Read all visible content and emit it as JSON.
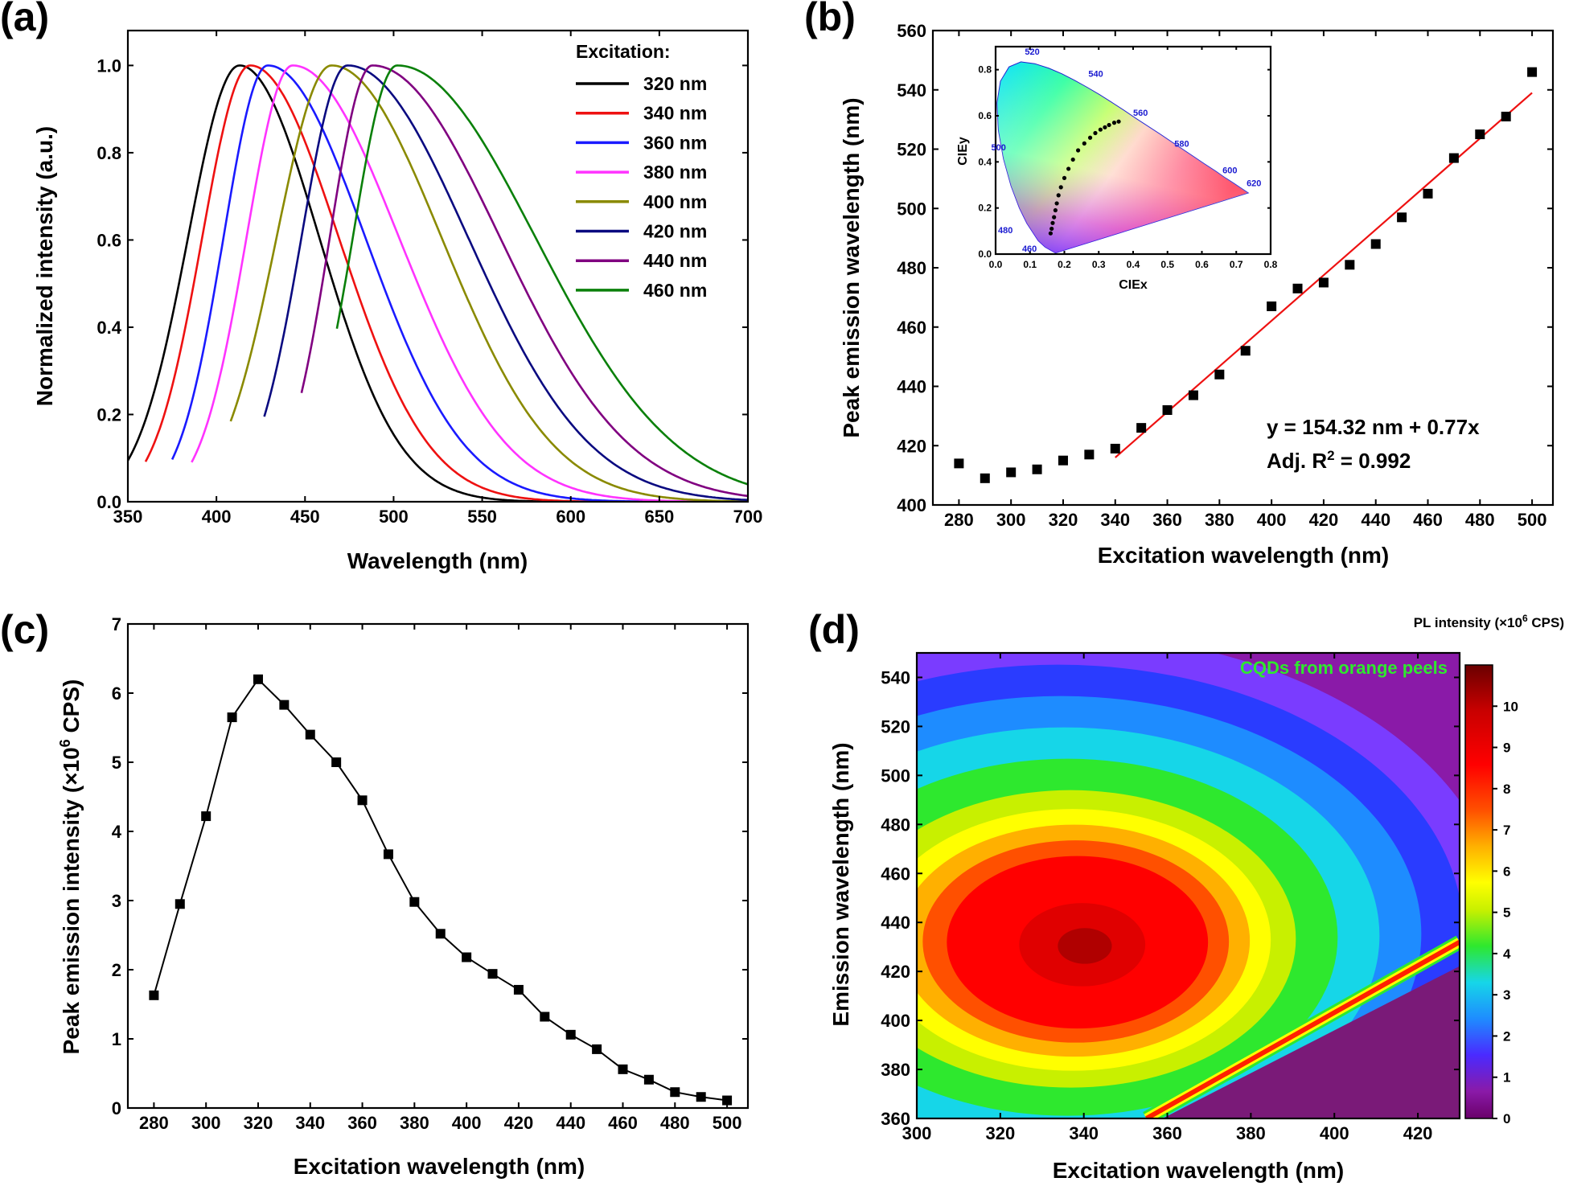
{
  "chart_data": [
    {
      "panel": "(a)",
      "type": "line",
      "title": "",
      "xlabel": "Wavelength (nm)",
      "ylabel": "Normalized intensity (a.u.)",
      "xlim": [
        350,
        700
      ],
      "ylim": [
        0.0,
        1.08
      ],
      "xticks": [
        "350",
        "400",
        "450",
        "500",
        "550",
        "600",
        "650",
        "700"
      ],
      "yticks": [
        "0.0",
        "0.2",
        "0.4",
        "0.6",
        "0.8",
        "1.0"
      ],
      "legend_title": "Excitation:",
      "series": [
        {
          "name": "320 nm",
          "color": "#000000",
          "start": 350,
          "peak": 413,
          "sl": 29,
          "sr": 45
        },
        {
          "name": "340 nm",
          "color": "#ee1111",
          "start": 360,
          "peak": 419,
          "sl": 27,
          "sr": 50
        },
        {
          "name": "360 nm",
          "color": "#1a1aff",
          "start": 375,
          "peak": 429,
          "sl": 25,
          "sr": 55
        },
        {
          "name": "380 nm",
          "color": "#ff33ff",
          "start": 386,
          "peak": 443,
          "sl": 26,
          "sr": 60
        },
        {
          "name": "400 nm",
          "color": "#8a8a00",
          "start": 408,
          "peak": 465,
          "sl": 31,
          "sr": 62
        },
        {
          "name": "420 nm",
          "color": "#0a0a80",
          "start": 427,
          "peak": 474,
          "sl": 26,
          "sr": 68
        },
        {
          "name": "440 nm",
          "color": "#800080",
          "start": 448,
          "peak": 488,
          "sl": 24,
          "sr": 72
        },
        {
          "name": "460 nm",
          "color": "#0a800a",
          "start": 468,
          "peak": 502,
          "sl": 25,
          "sr": 78
        }
      ]
    },
    {
      "panel": "(b)",
      "type": "scatter",
      "title": "",
      "xlabel": "Excitation wavelength (nm)",
      "ylabel": "Peak emission wavelength (nm)",
      "xlim": [
        270,
        508
      ],
      "ylim": [
        400,
        560
      ],
      "xticks": [
        "280",
        "300",
        "320",
        "340",
        "360",
        "380",
        "400",
        "420",
        "440",
        "460",
        "480",
        "500"
      ],
      "yticks": [
        "400",
        "420",
        "440",
        "460",
        "480",
        "500",
        "520",
        "540",
        "560"
      ],
      "x": [
        280,
        290,
        300,
        310,
        320,
        330,
        340,
        350,
        360,
        370,
        380,
        390,
        400,
        410,
        420,
        430,
        440,
        450,
        460,
        470,
        480,
        490,
        500
      ],
      "y": [
        414,
        409,
        411,
        412,
        415,
        417,
        419,
        426,
        432,
        437,
        444,
        452,
        467,
        473,
        475,
        481,
        488,
        497,
        505,
        517,
        525,
        531,
        546
      ],
      "fit": {
        "x": [
          340,
          500
        ],
        "y": [
          416,
          539
        ],
        "color": "#ee1111"
      },
      "equation": "y = 154.32 nm + 0.77x",
      "r2_prefix": "Adj. R",
      "r2_sup": "2",
      "r2_suffix": " = 0.992",
      "inset": {
        "type": "scatter",
        "xlabel": "CIEx",
        "ylabel": "CIEy",
        "xlim": [
          0.0,
          0.8
        ],
        "ylim": [
          0.0,
          0.9
        ],
        "xticks": [
          "0.0",
          "0.1",
          "0.2",
          "0.3",
          "0.4",
          "0.5",
          "0.6",
          "0.7",
          "0.8"
        ],
        "yticks": [
          "0.0",
          "0.2",
          "0.4",
          "0.6",
          "0.8"
        ],
        "wavelength_labels": [
          "520",
          "540",
          "560",
          "580",
          "600",
          "620",
          "500",
          "480",
          "460"
        ],
        "x": [
          0.16,
          0.163,
          0.166,
          0.17,
          0.174,
          0.178,
          0.183,
          0.19,
          0.2,
          0.212,
          0.225,
          0.24,
          0.258,
          0.275,
          0.29,
          0.305,
          0.318,
          0.33,
          0.345,
          0.358
        ],
        "y": [
          0.09,
          0.11,
          0.135,
          0.16,
          0.19,
          0.22,
          0.255,
          0.29,
          0.33,
          0.37,
          0.41,
          0.45,
          0.48,
          0.505,
          0.525,
          0.54,
          0.55,
          0.56,
          0.57,
          0.575
        ]
      }
    },
    {
      "panel": "(c)",
      "type": "line",
      "title": "",
      "xlabel": "Excitation wavelength (nm)",
      "ylabel_main": "Peak emission intensity (×10",
      "ylabel_sup": "6",
      "ylabel_end": " CPS)",
      "xlim": [
        270,
        508
      ],
      "ylim": [
        0,
        7
      ],
      "xticks": [
        "280",
        "300",
        "320",
        "340",
        "360",
        "380",
        "400",
        "420",
        "440",
        "460",
        "480",
        "500"
      ],
      "yticks": [
        "0",
        "1",
        "2",
        "3",
        "4",
        "5",
        "6",
        "7"
      ],
      "x": [
        280,
        290,
        300,
        310,
        320,
        330,
        340,
        350,
        360,
        370,
        380,
        390,
        400,
        410,
        420,
        430,
        440,
        450,
        460,
        470,
        480,
        490,
        500
      ],
      "y": [
        1.63,
        2.95,
        4.22,
        5.65,
        6.2,
        5.83,
        5.4,
        5.0,
        4.45,
        3.67,
        2.98,
        2.52,
        2.18,
        1.94,
        1.71,
        1.32,
        1.06,
        0.85,
        0.56,
        0.41,
        0.23,
        0.16,
        0.11
      ]
    },
    {
      "panel": "(d)",
      "type": "heatmap",
      "title": "",
      "xlabel": "Excitation wavelength (nm)",
      "ylabel": "Emission wavelength (nm)",
      "xlim": [
        300,
        430
      ],
      "ylim": [
        360,
        550
      ],
      "xticks": [
        "300",
        "320",
        "340",
        "360",
        "380",
        "400",
        "420"
      ],
      "yticks": [
        "360",
        "380",
        "400",
        "420",
        "440",
        "460",
        "480",
        "500",
        "520",
        "540"
      ],
      "annotation": "CQDs from orange peels",
      "colorbar_title_main": "PL intensity (×10",
      "colorbar_title_sup": "6",
      "colorbar_title_end": " CPS)",
      "colorbar_ticks": [
        "0",
        "1",
        "2",
        "3",
        "4",
        "5",
        "6",
        "7",
        "8",
        "9",
        "10"
      ],
      "colorbar_range": [
        0,
        11
      ],
      "peak": {
        "ex": 333,
        "em": 430,
        "value": 10.6
      },
      "scatter_line": {
        "ex": [
          355,
          430
        ],
        "em": [
          360,
          432
        ],
        "value": 8.5
      }
    }
  ]
}
